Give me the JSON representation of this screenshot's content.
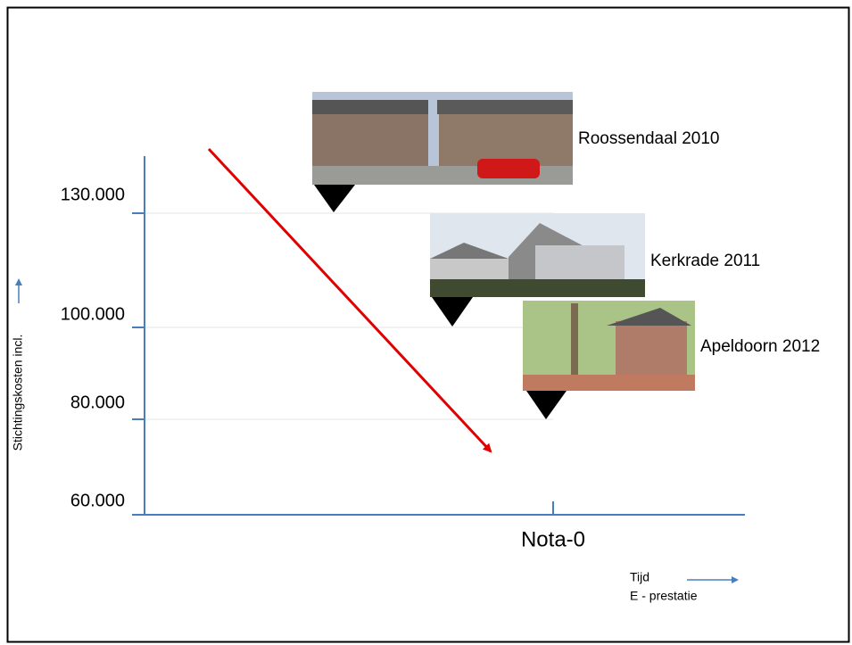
{
  "y_axis": {
    "label": "Stichtingskosten incl.",
    "ticks": [
      "130.000",
      "100.000",
      "80.000",
      "60.000"
    ]
  },
  "x_axis": {
    "marker": "Nota-0"
  },
  "photos": [
    {
      "caption": "Roossendaal 2010"
    },
    {
      "caption": "Kerkrade 2011"
    },
    {
      "caption": "Apeldoorn 2012"
    }
  ],
  "legend": {
    "time": "Tijd",
    "performance": "E - prestatie"
  }
}
